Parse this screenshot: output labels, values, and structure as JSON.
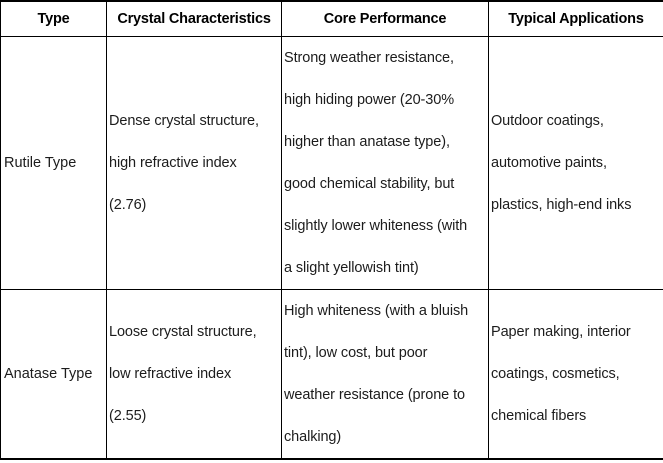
{
  "table": {
    "headers": [
      "Type",
      "Crystal Characteristics",
      "Core Performance",
      "Typical Applications"
    ],
    "rows": [
      {
        "type": "Rutile Type",
        "crystal_characteristics": [
          "Dense crystal structure,",
          "high refractive index",
          "(2.76)"
        ],
        "core_performance": [
          "Strong weather resistance,",
          "high hiding power (20-30%",
          "higher than anatase type),",
          "good chemical stability, but",
          "slightly lower whiteness (with",
          "a slight yellowish tint)"
        ],
        "typical_applications": [
          "Outdoor coatings,",
          "automotive paints,",
          "plastics, high-end inks"
        ]
      },
      {
        "type": "Anatase Type",
        "crystal_characteristics": [
          "Loose crystal structure,",
          "low refractive index",
          "(2.55)"
        ],
        "core_performance": [
          "High whiteness (with a bluish",
          "tint), low cost, but poor",
          "weather resistance (prone to",
          "chalking)"
        ],
        "typical_applications": [
          "Paper making, interior",
          "coatings, cosmetics,",
          "chemical fibers"
        ]
      }
    ]
  },
  "colors": {
    "border": "#000000",
    "header_text": "#000000",
    "body_text": "#1c1c1c",
    "background": "#ffffff"
  }
}
